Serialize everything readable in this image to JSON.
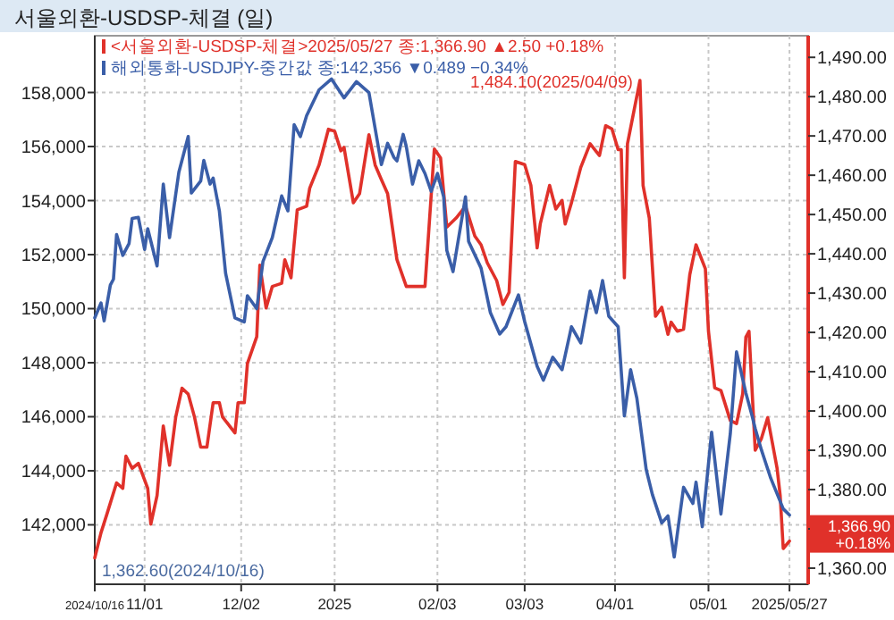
{
  "chart_data": {
    "type": "line",
    "title": "서울외환-USDSP-체결 (일)",
    "legend": "top left",
    "grid": true,
    "xlim": [
      "2024-10-16",
      "2025-06-02"
    ],
    "xticks": [
      {
        "value": "2024-10-16",
        "label": "2024/10/16"
      },
      {
        "value": "2024-11-01",
        "label": "11/01"
      },
      {
        "value": "2024-12-02",
        "label": "12/02"
      },
      {
        "value": "2025-01-01",
        "label": "2025"
      },
      {
        "value": "2025-02-03",
        "label": "02/03"
      },
      {
        "value": "2025-03-03",
        "label": "03/03"
      },
      {
        "value": "2025-04-01",
        "label": "04/01"
      },
      {
        "value": "2025-05-01",
        "label": "05/01"
      },
      {
        "value": "2025-05-27",
        "label": "2025/05/27"
      }
    ],
    "ylim": [
      139800,
      160100
    ],
    "yticks": [
      {
        "value": 142000,
        "label": "142,000"
      },
      {
        "value": 144000,
        "label": "144,000"
      },
      {
        "value": 146000,
        "label": "146,000"
      },
      {
        "value": 148000,
        "label": "148,000"
      },
      {
        "value": 150000,
        "label": "150,000"
      },
      {
        "value": 152000,
        "label": "152,000"
      },
      {
        "value": 154000,
        "label": "154,000"
      },
      {
        "value": 156000,
        "label": "156,000"
      },
      {
        "value": 158000,
        "label": "158,000"
      }
    ],
    "y2lim": [
      1355.9,
      1495.5
    ],
    "y2ticks": [
      {
        "value": 1360,
        "label": "1,360.00"
      },
      {
        "value": 1370,
        "label": null
      },
      {
        "value": 1380,
        "label": "1,380.00"
      },
      {
        "value": 1390,
        "label": "1,390.00"
      },
      {
        "value": 1400,
        "label": "1,400.00"
      },
      {
        "value": 1410,
        "label": "1,410.00"
      },
      {
        "value": 1420,
        "label": "1,420.00"
      },
      {
        "value": 1430,
        "label": "1,430.00"
      },
      {
        "value": 1440,
        "label": "1,440.00"
      },
      {
        "value": 1450,
        "label": "1,450.00"
      },
      {
        "value": 1460,
        "label": "1,460.00"
      },
      {
        "value": 1470,
        "label": "1,470.00"
      },
      {
        "value": 1480,
        "label": "1,480.00"
      },
      {
        "value": 1490,
        "label": "1,490.00"
      }
    ],
    "series": [
      {
        "name": "<서울외환-USDSP-체결>2025/05/27 종:1,366.90 ▲2.50 +0.18%",
        "color": "#e0312a",
        "axis": "y2",
        "x": [
          "2024-10-16",
          "2024-10-18",
          "2024-10-20",
          "2024-10-23",
          "2024-10-25",
          "2024-10-26",
          "2024-10-28",
          "2024-10-30",
          "2024-11-02",
          "2024-11-03",
          "2024-11-05",
          "2024-11-07",
          "2024-11-09",
          "2024-11-11",
          "2024-11-13",
          "2024-11-15",
          "2024-11-17",
          "2024-11-19",
          "2024-11-21",
          "2024-11-23",
          "2024-11-25",
          "2024-11-26",
          "2024-11-30",
          "2024-12-01",
          "2024-12-03",
          "2024-12-04",
          "2024-12-07",
          "2024-12-08",
          "2024-12-10",
          "2024-12-12",
          "2024-12-15",
          "2024-12-16",
          "2024-12-18",
          "2024-12-20",
          "2024-12-23",
          "2024-12-24",
          "2024-12-27",
          "2024-12-30",
          "2025-01-01",
          "2025-01-03",
          "2025-01-04",
          "2025-01-07",
          "2025-01-09",
          "2025-01-12",
          "2025-01-14",
          "2025-01-16",
          "2025-01-18",
          "2025-01-21",
          "2025-01-24",
          "2025-01-30",
          "2025-02-02",
          "2025-02-04",
          "2025-02-06",
          "2025-02-09",
          "2025-02-12",
          "2025-02-15",
          "2025-02-17",
          "2025-02-19",
          "2025-02-22",
          "2025-02-24",
          "2025-02-26",
          "2025-02-28",
          "2025-03-03",
          "2025-03-05",
          "2025-03-07",
          "2025-03-08",
          "2025-03-11",
          "2025-03-13",
          "2025-03-15",
          "2025-03-16",
          "2025-03-18",
          "2025-03-21",
          "2025-03-24",
          "2025-03-27",
          "2025-03-29",
          "2025-03-31",
          "2025-04-02",
          "2025-04-03",
          "2025-04-04",
          "2025-04-05",
          "2025-04-09",
          "2025-04-10",
          "2025-04-12",
          "2025-04-14",
          "2025-04-16",
          "2025-04-18",
          "2025-04-19",
          "2025-04-21",
          "2025-04-23",
          "2025-04-25",
          "2025-04-27",
          "2025-04-30",
          "2025-05-01",
          "2025-05-03",
          "2025-05-05",
          "2025-05-08",
          "2025-05-10",
          "2025-05-12",
          "2025-05-13",
          "2025-05-14",
          "2025-05-16",
          "2025-05-18",
          "2025-05-20",
          "2025-05-23",
          "2025-05-24",
          "2025-05-25",
          "2025-05-27"
        ],
        "values": [
          1362.6,
          1369.0,
          1374.0,
          1381.7,
          1380.3,
          1388.5,
          1385.4,
          1386.7,
          1380.3,
          1371.2,
          1378.5,
          1396.2,
          1386.2,
          1398.5,
          1405.8,
          1404.3,
          1398.5,
          1390.8,
          1390.8,
          1402.1,
          1402.1,
          1398.5,
          1394.4,
          1402.1,
          1402.1,
          1412.1,
          1418.9,
          1437.1,
          1426.2,
          1431.7,
          1432.5,
          1438.5,
          1433.9,
          1451.2,
          1452.1,
          1456.7,
          1462.6,
          1471.7,
          1471.2,
          1466.2,
          1467.1,
          1453.0,
          1455.3,
          1470.3,
          1462.6,
          1458.9,
          1455.3,
          1438.5,
          1431.7,
          1431.7,
          1466.7,
          1464.4,
          1446.8,
          1449.1,
          1452.1,
          1444.5,
          1442.3,
          1437.7,
          1433.2,
          1427.1,
          1430.2,
          1463.5,
          1462.7,
          1457.4,
          1441.5,
          1447.6,
          1457.4,
          1451.4,
          1453.6,
          1447.6,
          1452.9,
          1462.0,
          1468.0,
          1465.0,
          1472.6,
          1471.8,
          1466.5,
          1466.5,
          1433.9,
          1468.0,
          1484.1,
          1457.4,
          1449.1,
          1424.1,
          1426.4,
          1419.5,
          1422.6,
          1420.3,
          1420.8,
          1434.7,
          1442.3,
          1436.2,
          1420.3,
          1405.9,
          1405.2,
          1397.6,
          1396.8,
          1404.4,
          1418.8,
          1420.3,
          1390.0,
          1393.0,
          1398.3,
          1385.5,
          1378.6,
          1365.0,
          1366.9
        ]
      },
      {
        "name": "해외통화-USDJPY-중간값 종:142,356 ▼0.489 −0.34%",
        "color": "#3a5ea8",
        "axis": "y",
        "x": [
          "2024-10-16",
          "2024-10-18",
          "2024-10-19",
          "2024-10-21",
          "2024-10-22",
          "2024-10-23",
          "2024-10-25",
          "2024-10-27",
          "2024-10-28",
          "2024-10-30",
          "2024-11-01",
          "2024-11-02",
          "2024-11-05",
          "2024-11-07",
          "2024-11-09",
          "2024-11-12",
          "2024-11-15",
          "2024-11-16",
          "2024-11-19",
          "2024-11-20",
          "2024-11-22",
          "2024-11-23",
          "2024-11-25",
          "2024-11-27",
          "2024-11-30",
          "2024-12-03",
          "2024-12-04",
          "2024-12-07",
          "2024-12-09",
          "2024-12-12",
          "2024-12-15",
          "2024-12-17",
          "2024-12-19",
          "2024-12-21",
          "2024-12-23",
          "2024-12-27",
          "2024-12-31",
          "2025-01-04",
          "2025-01-08",
          "2025-01-12",
          "2025-01-16",
          "2025-01-18",
          "2025-01-20",
          "2025-01-21",
          "2025-01-23",
          "2025-01-24",
          "2025-01-26",
          "2025-01-28",
          "2025-01-30",
          "2025-02-01",
          "2025-02-03",
          "2025-02-05",
          "2025-02-06",
          "2025-02-08",
          "2025-02-12",
          "2025-02-13",
          "2025-02-17",
          "2025-02-20",
          "2025-02-23",
          "2025-02-25",
          "2025-03-01",
          "2025-03-03",
          "2025-03-07",
          "2025-03-09",
          "2025-03-12",
          "2025-03-15",
          "2025-03-18",
          "2025-03-21",
          "2025-03-24",
          "2025-03-26",
          "2025-03-28",
          "2025-03-30",
          "2025-04-02",
          "2025-04-04",
          "2025-04-06",
          "2025-04-08",
          "2025-04-11",
          "2025-04-13",
          "2025-04-16",
          "2025-04-18",
          "2025-04-20",
          "2025-04-23",
          "2025-04-26",
          "2025-04-27",
          "2025-04-29",
          "2025-05-02",
          "2025-05-05",
          "2025-05-08",
          "2025-05-10",
          "2025-05-13",
          "2025-05-15",
          "2025-05-16",
          "2025-05-18",
          "2025-05-21",
          "2025-05-25",
          "2025-05-27"
        ],
        "values": [
          149660,
          150210,
          149550,
          150870,
          151090,
          152740,
          151970,
          152410,
          153340,
          153380,
          152190,
          152960,
          151580,
          154610,
          152630,
          155050,
          156370,
          154280,
          154720,
          155490,
          154610,
          154830,
          153620,
          151310,
          149660,
          149510,
          150480,
          150000,
          151750,
          152630,
          154170,
          153620,
          156810,
          156370,
          157140,
          158100,
          158500,
          157800,
          158400,
          158000,
          155330,
          156120,
          155600,
          155470,
          156450,
          156000,
          154610,
          155470,
          155000,
          154340,
          155000,
          154140,
          152160,
          151370,
          154140,
          152490,
          151500,
          149850,
          149060,
          149330,
          150510,
          149520,
          147870,
          147350,
          148200,
          147740,
          149330,
          148730,
          150650,
          149850,
          151040,
          149720,
          149330,
          146030,
          147740,
          146690,
          144050,
          143120,
          142070,
          142330,
          140810,
          143390,
          142790,
          143580,
          141930,
          145430,
          142400,
          145370,
          148400,
          146880,
          146030,
          145560,
          144770,
          143720,
          142590,
          142360
        ]
      }
    ],
    "annotations": [
      "1,484.10(2025/04/09)",
      "1,362.60(2024/10/16)",
      "1,366.90",
      "+0.18%"
    ]
  }
}
